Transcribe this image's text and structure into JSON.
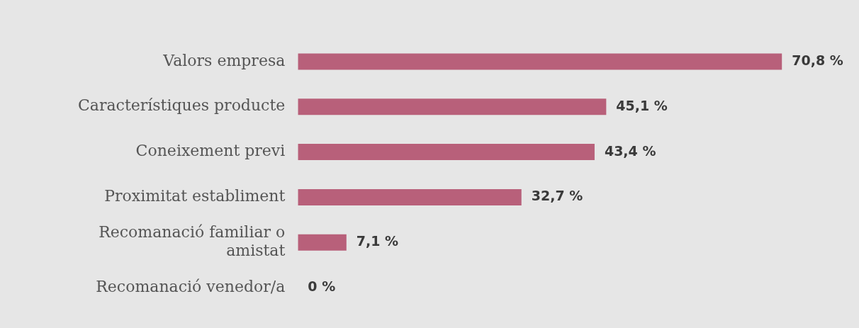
{
  "chart_data": {
    "type": "bar",
    "orientation": "horizontal",
    "tick_labels": "y",
    "categories": [
      "Valors empresa",
      "Característiques producte",
      "Coneixement previ",
      "Proximitat establiment",
      "Recomanació familiar o amistat",
      "Recomanació venedor/a"
    ],
    "values": [
      70.8,
      45.1,
      43.4,
      32.7,
      7.1,
      0
    ],
    "color": "#b8607a",
    "value_labels": [
      "70,8 %",
      "45,1 %",
      "43,4 %",
      "32,7 %",
      "7,1 %",
      "0 %"
    ]
  }
}
